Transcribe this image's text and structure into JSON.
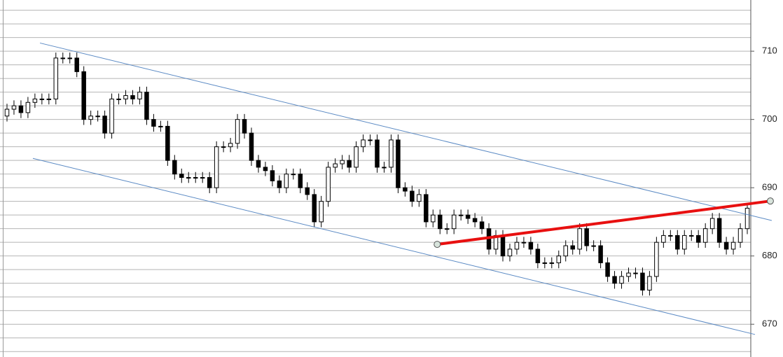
{
  "chart_data": {
    "type": "candlestick",
    "open": [
      700.5,
      701.5,
      702,
      701,
      702.5,
      703,
      703,
      703,
      709,
      709,
      709,
      707,
      700,
      700.5,
      700.5,
      698,
      703,
      703,
      703.5,
      703,
      704,
      700,
      699,
      699,
      694,
      692,
      691.5,
      691.5,
      691.5,
      691.5,
      690,
      696,
      696,
      696.5,
      700,
      698,
      694,
      693,
      692.5,
      691,
      690,
      692,
      692,
      690,
      689,
      685,
      688,
      693,
      693.5,
      694,
      693,
      696,
      697,
      697,
      693,
      693,
      697,
      690,
      689.5,
      688,
      689,
      685,
      686,
      684,
      684,
      686,
      686,
      685.5,
      685,
      684,
      681,
      683,
      680,
      681,
      682,
      682,
      681,
      679,
      679,
      679,
      680,
      681.5,
      681,
      684,
      681.5,
      681.5,
      679,
      677,
      676,
      677,
      677.5,
      677.5,
      675,
      677,
      682,
      683,
      683,
      681,
      683,
      683,
      682,
      684,
      685.5,
      682,
      681,
      682,
      684
    ],
    "high": [
      702.3,
      702.8,
      702.8,
      703.3,
      703.8,
      703.8,
      703.8,
      709.8,
      709.8,
      709.8,
      709.8,
      707.8,
      701.3,
      701.3,
      701.3,
      703.8,
      703.8,
      704.3,
      704.3,
      704.8,
      704.8,
      700.8,
      699.8,
      699.8,
      694.8,
      692.8,
      692.3,
      692.3,
      692.3,
      692.3,
      696.8,
      696.8,
      697.3,
      700.8,
      700.8,
      698.8,
      694.8,
      693.8,
      693.3,
      691.8,
      692.8,
      692.8,
      692.8,
      690.8,
      689.8,
      688.8,
      693.8,
      694.3,
      694.8,
      694.8,
      696.8,
      697.8,
      697.8,
      697.8,
      693.8,
      697.8,
      697.8,
      690.8,
      690.3,
      689.8,
      689.8,
      686.8,
      686.8,
      684.8,
      686.8,
      686.8,
      686.8,
      686.3,
      685.8,
      684.8,
      683.8,
      683.8,
      681.8,
      682.8,
      682.8,
      682.8,
      681.8,
      679.8,
      679.8,
      680.8,
      682.3,
      682.3,
      684.8,
      684.8,
      682.3,
      682.3,
      679.8,
      677.8,
      677.8,
      678.3,
      678.3,
      678.3,
      677.8,
      682.8,
      683.8,
      683.8,
      683.8,
      683.8,
      683.8,
      683.8,
      684.8,
      686.3,
      686.3,
      682.8,
      682.8,
      684.8,
      687.8
    ],
    "low": [
      699.7,
      700.7,
      700.2,
      700.2,
      701.7,
      702.2,
      702.2,
      702.2,
      708.2,
      708.2,
      706.2,
      699.2,
      699.2,
      699.7,
      697.2,
      697.2,
      702.2,
      702.2,
      702.2,
      702.2,
      699.2,
      698.2,
      698.2,
      693.2,
      691.2,
      690.7,
      690.7,
      690.7,
      690.7,
      689.2,
      689.2,
      695.2,
      695.2,
      695.7,
      697.2,
      693.2,
      692.2,
      691.7,
      690.2,
      689.2,
      689.2,
      691.2,
      689.2,
      688.2,
      684.2,
      684.2,
      687.2,
      692.2,
      692.7,
      692.2,
      692.2,
      695.2,
      696.2,
      692.2,
      692.2,
      692.2,
      689.2,
      688.7,
      687.2,
      687.2,
      684.2,
      684.2,
      683.2,
      683.2,
      683.2,
      685.2,
      684.7,
      684.2,
      683.2,
      680.2,
      680.2,
      679.2,
      679.2,
      680.2,
      681.2,
      680.2,
      678.2,
      678.2,
      678.2,
      678.2,
      679.2,
      680.2,
      680.2,
      680.7,
      680.7,
      678.2,
      676.2,
      675.2,
      675.2,
      676.2,
      676.7,
      674.2,
      674.2,
      676.2,
      681.2,
      682.2,
      680.2,
      680.2,
      682.2,
      681.2,
      681.2,
      683.2,
      681.2,
      680.2,
      680.2,
      681.2,
      683.2
    ],
    "close": [
      701.5,
      702,
      701,
      702.5,
      703,
      703,
      703,
      709,
      709,
      709,
      707,
      700,
      700.5,
      700.5,
      698,
      703,
      703,
      703.5,
      703,
      704,
      700,
      699,
      699,
      694,
      692,
      691.5,
      691.5,
      691.5,
      691.5,
      690,
      696,
      696,
      696.5,
      700,
      698,
      694,
      693,
      692.5,
      691,
      690,
      692,
      692,
      690,
      689,
      685,
      688,
      693,
      693.5,
      694,
      693,
      696,
      697,
      697,
      693,
      693,
      697,
      690,
      689.5,
      688,
      689,
      685,
      686,
      684,
      684,
      686,
      686,
      685.5,
      685,
      684,
      681,
      683,
      680,
      681,
      682,
      682,
      681,
      679,
      679,
      679,
      680,
      681.5,
      681,
      684,
      681.5,
      681.5,
      679,
      677,
      676,
      677,
      677.5,
      677.5,
      675,
      677,
      682,
      683,
      683,
      681,
      683,
      683,
      682,
      684,
      685.5,
      682,
      681,
      682,
      684,
      687
    ],
    "up_color": "#ffffff",
    "down_color": "#000000",
    "ylim": [
      665.2,
      717.5
    ],
    "yticks": [
      670,
      680,
      690,
      700,
      710
    ],
    "minor_yticks": [
      666,
      668,
      670,
      672,
      674,
      676,
      678,
      680,
      682,
      684,
      686,
      688,
      690,
      692,
      694,
      696,
      698,
      700,
      702,
      704,
      706,
      708,
      710,
      712,
      714,
      716
    ],
    "grid": true,
    "lines": [
      {
        "color": "#5b8ac4",
        "width": 1,
        "points": [
          [
            4.72,
            711.2
          ],
          [
            109.5,
            685.2
          ]
        ]
      },
      {
        "color": "#5b8ac4",
        "width": 1,
        "points": [
          [
            3.71,
            694.3
          ],
          [
            107.1,
            668.5
          ]
        ]
      },
      {
        "color": "#e81010",
        "width": 4,
        "handles": true,
        "points": [
          [
            61.6,
            681.7
          ],
          [
            109.3,
            688.05
          ]
        ]
      }
    ]
  }
}
